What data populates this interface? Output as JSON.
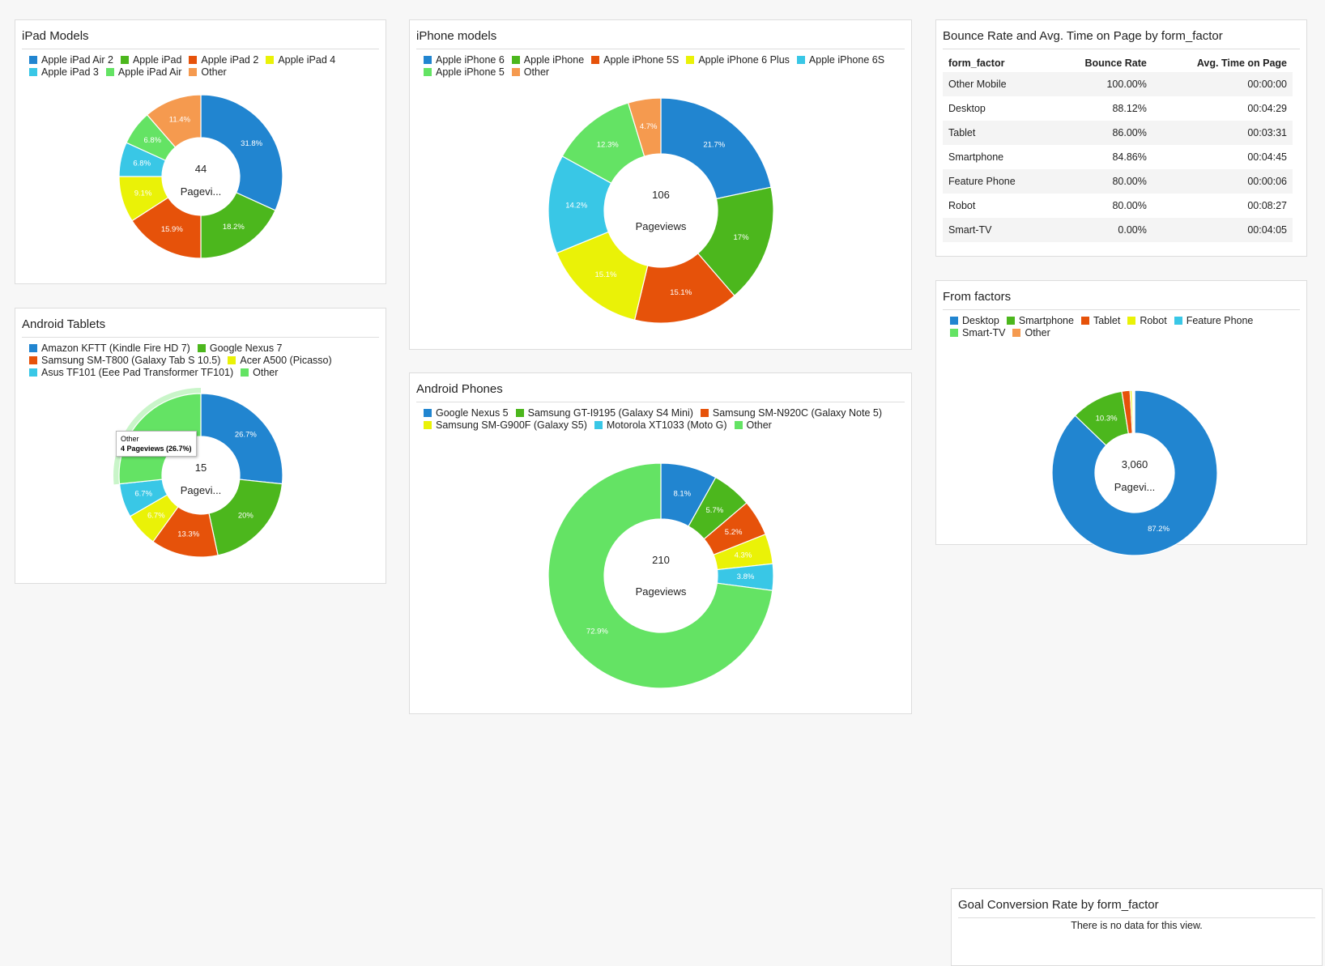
{
  "colors": {
    "blue": "#2185d0",
    "green": "#4cb71d",
    "orange": "#e6520a",
    "yellow": "#eaf207",
    "cyan": "#39c7e6",
    "lightgreen": "#64e364",
    "peach": "#f59a4f"
  },
  "ipad": {
    "title": "iPad Models",
    "center_value": "44",
    "center_label": "Pagevi...",
    "legend": [
      {
        "label": "Apple iPad Air 2",
        "color": "#2185d0"
      },
      {
        "label": "Apple iPad",
        "color": "#4cb71d"
      },
      {
        "label": "Apple iPad 2",
        "color": "#e6520a"
      },
      {
        "label": "Apple iPad 4",
        "color": "#eaf207"
      },
      {
        "label": "Apple iPad 3",
        "color": "#39c7e6"
      },
      {
        "label": "Apple iPad Air",
        "color": "#64e364"
      },
      {
        "label": "Other",
        "color": "#f59a4f"
      }
    ]
  },
  "iphone": {
    "title": "iPhone models",
    "center_value": "106",
    "center_label": "Pageviews",
    "legend": [
      {
        "label": "Apple iPhone 6",
        "color": "#2185d0"
      },
      {
        "label": "Apple iPhone",
        "color": "#4cb71d"
      },
      {
        "label": "Apple iPhone 5S",
        "color": "#e6520a"
      },
      {
        "label": "Apple iPhone 6 Plus",
        "color": "#eaf207"
      },
      {
        "label": "Apple iPhone 6S",
        "color": "#39c7e6"
      },
      {
        "label": "Apple iPhone 5",
        "color": "#64e364"
      },
      {
        "label": "Other",
        "color": "#f59a4f"
      }
    ]
  },
  "bounce": {
    "title": "Bounce Rate and Avg. Time on Page by form_factor",
    "headers": [
      "form_factor",
      "Bounce Rate",
      "Avg. Time on Page"
    ],
    "rows": [
      [
        "Other Mobile",
        "100.00%",
        "00:00:00"
      ],
      [
        "Desktop",
        "88.12%",
        "00:04:29"
      ],
      [
        "Tablet",
        "86.00%",
        "00:03:31"
      ],
      [
        "Smartphone",
        "84.86%",
        "00:04:45"
      ],
      [
        "Feature Phone",
        "80.00%",
        "00:00:06"
      ],
      [
        "Robot",
        "80.00%",
        "00:08:27"
      ],
      [
        "Smart-TV",
        "0.00%",
        "00:04:05"
      ]
    ]
  },
  "tablets": {
    "title": "Android Tablets",
    "center_value": "15",
    "center_label": "Pagevi...",
    "tooltip_title": "Other",
    "tooltip_value": "4 Pageviews (26.7%)",
    "legend": [
      {
        "label": "Amazon KFTT (Kindle Fire HD 7)",
        "color": "#2185d0"
      },
      {
        "label": "Google Nexus 7",
        "color": "#4cb71d"
      },
      {
        "label": "Samsung SM-T800 (Galaxy Tab S 10.5)",
        "color": "#e6520a"
      },
      {
        "label": "Acer A500 (Picasso)",
        "color": "#eaf207"
      },
      {
        "label": "Asus TF101 (Eee Pad Transformer TF101)",
        "color": "#39c7e6"
      },
      {
        "label": "Other",
        "color": "#64e364"
      }
    ]
  },
  "phones": {
    "title": "Android Phones",
    "center_value": "210",
    "center_label": "Pageviews",
    "legend": [
      {
        "label": "Google Nexus 5",
        "color": "#2185d0"
      },
      {
        "label": "Samsung GT-I9195 (Galaxy S4 Mini)",
        "color": "#4cb71d"
      },
      {
        "label": "Samsung SM-N920C (Galaxy Note 5)",
        "color": "#e6520a"
      },
      {
        "label": "Samsung SM-G900F (Galaxy S5)",
        "color": "#eaf207"
      },
      {
        "label": "Motorola XT1033 (Moto G)",
        "color": "#39c7e6"
      },
      {
        "label": "Other",
        "color": "#64e364"
      }
    ]
  },
  "factors": {
    "title": "From factors",
    "center_value": "3,060",
    "center_label": "Pagevi...",
    "legend": [
      {
        "label": "Desktop",
        "color": "#2185d0"
      },
      {
        "label": "Smartphone",
        "color": "#4cb71d"
      },
      {
        "label": "Tablet",
        "color": "#e6520a"
      },
      {
        "label": "Robot",
        "color": "#eaf207"
      },
      {
        "label": "Feature Phone",
        "color": "#39c7e6"
      },
      {
        "label": "Smart-TV",
        "color": "#64e364"
      },
      {
        "label": "Other",
        "color": "#f59a4f"
      }
    ]
  },
  "goal": {
    "title": "Goal Conversion Rate by form_factor",
    "message": "There is no data for this view."
  },
  "chart_data": [
    {
      "id": "ipad",
      "type": "pie",
      "title": "iPad Models",
      "categories": [
        "Apple iPad Air 2",
        "Apple iPad",
        "Apple iPad 2",
        "Apple iPad 4",
        "Apple iPad 3",
        "Apple iPad Air",
        "Other"
      ],
      "values": [
        31.8,
        18.2,
        15.9,
        9.1,
        6.8,
        6.8,
        11.4
      ],
      "labels": [
        "31.8%",
        "18.2%",
        "15.9%",
        "9.1%",
        "6.8%",
        "6.8%",
        "11.4%"
      ],
      "total": "44"
    },
    {
      "id": "iphone",
      "type": "pie",
      "title": "iPhone models",
      "categories": [
        "Apple iPhone 6",
        "Apple iPhone",
        "Apple iPhone 5S",
        "Apple iPhone 6 Plus",
        "Apple iPhone 6S",
        "Apple iPhone 5",
        "Other"
      ],
      "values": [
        21.7,
        17,
        15.1,
        15.1,
        14.2,
        12.3,
        4.7
      ],
      "labels": [
        "21.7%",
        "17%",
        "15.1%",
        "15.1%",
        "14.2%",
        "12.3%",
        "4.7%"
      ],
      "total": "106"
    },
    {
      "id": "tablets",
      "type": "pie",
      "title": "Android Tablets",
      "categories": [
        "Amazon KFTT (Kindle Fire HD 7)",
        "Google Nexus 7",
        "Samsung SM-T800 (Galaxy Tab S 10.5)",
        "Acer A500 (Picasso)",
        "Asus TF101 (Eee Pad Transformer TF101)",
        "Other"
      ],
      "values": [
        26.7,
        20,
        13.3,
        6.7,
        6.7,
        26.7
      ],
      "labels": [
        "26.7%",
        "20%",
        "13.3%",
        "6.7%",
        "6.7%",
        ""
      ],
      "total": "15"
    },
    {
      "id": "phones",
      "type": "pie",
      "title": "Android Phones",
      "categories": [
        "Google Nexus 5",
        "Samsung GT-I9195 (Galaxy S4 Mini)",
        "Samsung SM-N920C (Galaxy Note 5)",
        "Samsung SM-G900F (Galaxy S5)",
        "Motorola XT1033 (Moto G)",
        "Other"
      ],
      "values": [
        8.1,
        5.7,
        5.2,
        4.3,
        3.8,
        72.9
      ],
      "labels": [
        "8.1%",
        "5.7%",
        "5.2%",
        "4.3%",
        "3.8%",
        "72.9%"
      ],
      "total": "210"
    },
    {
      "id": "factors",
      "type": "pie",
      "title": "From factors",
      "categories": [
        "Desktop",
        "Smartphone",
        "Tablet",
        "Robot",
        "Feature Phone",
        "Smart-TV",
        "Other"
      ],
      "values": [
        87.2,
        10.3,
        1.6,
        0.4,
        0.2,
        0.2,
        0.1
      ],
      "labels": [
        "87.2%",
        "10.3%",
        "",
        "",
        "",
        "",
        ""
      ],
      "total": "3,060"
    }
  ]
}
